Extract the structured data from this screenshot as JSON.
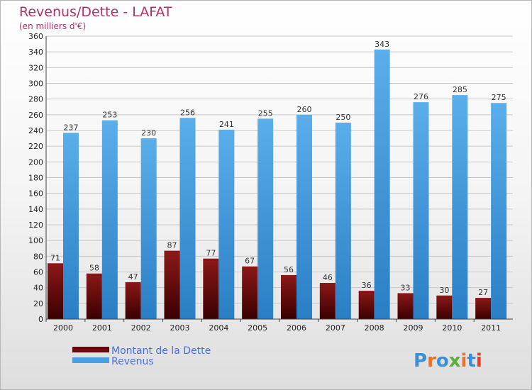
{
  "chart_data": {
    "type": "bar",
    "title": "Revenus/Dette - LAFAT",
    "subtitle": "(en milliers d'€)",
    "categories": [
      "2000",
      "2001",
      "2002",
      "2003",
      "2004",
      "2005",
      "2006",
      "2007",
      "2008",
      "2009",
      "2010",
      "2011"
    ],
    "series": [
      {
        "name": "Montant de la Dette",
        "values": [
          71,
          58,
          47,
          87,
          77,
          67,
          56,
          46,
          36,
          33,
          30,
          27
        ],
        "color": "#7a1010"
      },
      {
        "name": "Revenus",
        "values": [
          237,
          253,
          230,
          256,
          241,
          255,
          260,
          250,
          343,
          276,
          285,
          275
        ],
        "color": "#4a9fe0"
      }
    ],
    "ylim": [
      0,
      360
    ],
    "ytick_step": 20,
    "grid": true,
    "legend_position": "bottom-left"
  },
  "logo": {
    "text": "Proxiti"
  }
}
